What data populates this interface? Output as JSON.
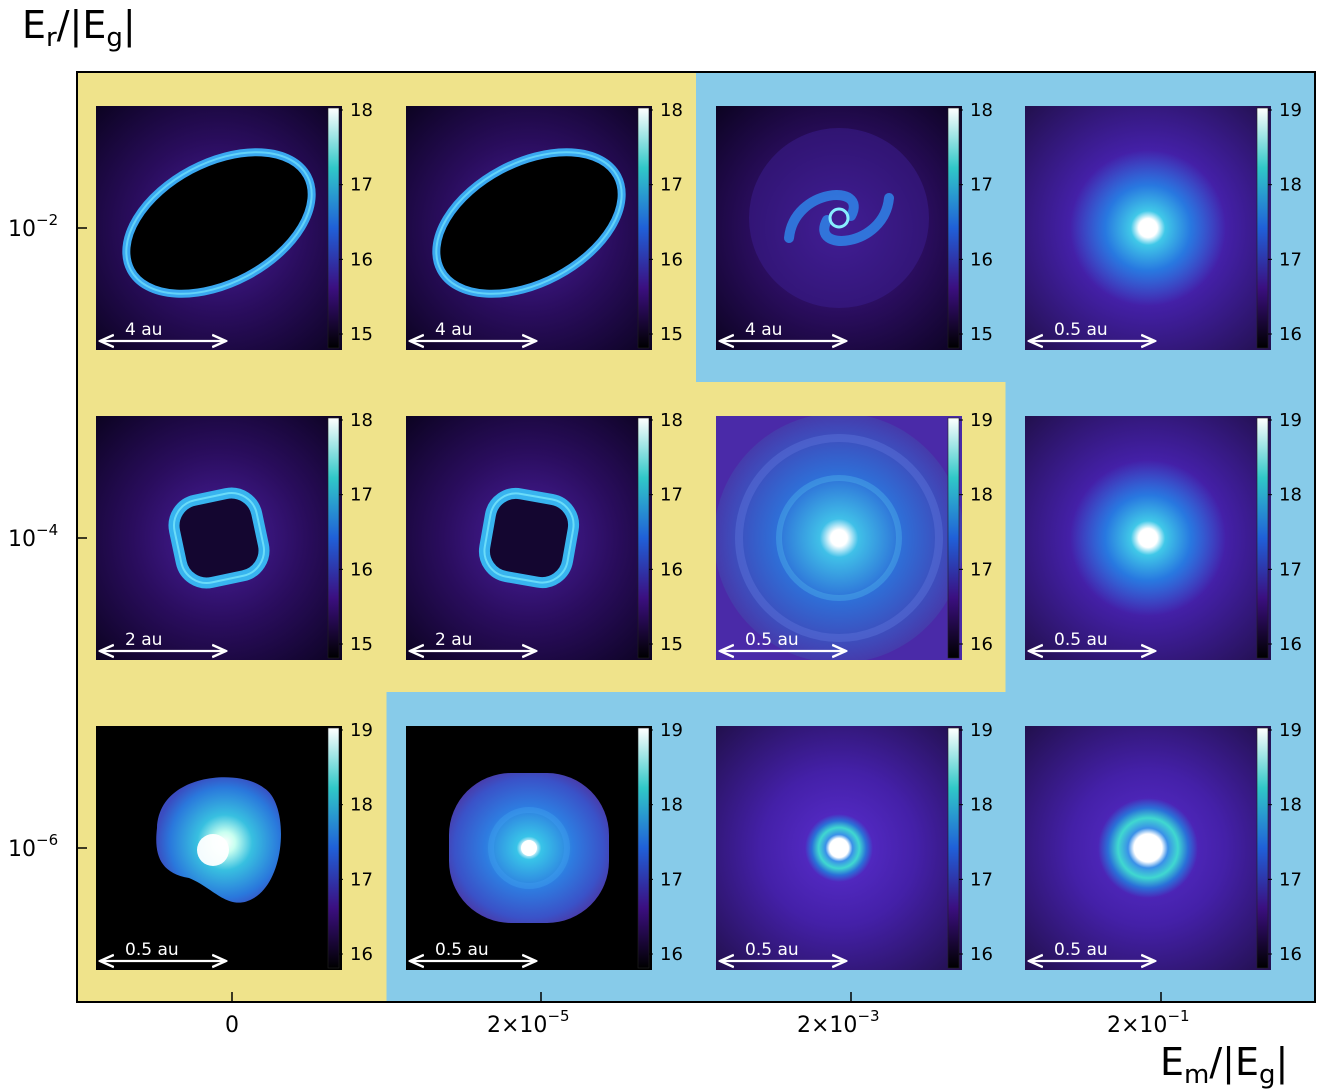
{
  "axes": {
    "y_title_main": "E",
    "y_title_sub": "r",
    "y_title_rest": "/|E",
    "y_title_sub2": "g",
    "y_title_end": "|",
    "x_title_main": "E",
    "x_title_sub": "m",
    "x_title_rest": "/|E",
    "x_title_sub2": "g",
    "x_title_end": "|",
    "y_ticks": [
      {
        "base": "10",
        "exp": "−2"
      },
      {
        "base": "10",
        "exp": "−4"
      },
      {
        "base": "10",
        "exp": "−6"
      }
    ],
    "x_ticks": [
      {
        "base": "0",
        "exp": ""
      },
      {
        "base": "2×10",
        "exp": "−5"
      },
      {
        "base": "2×10",
        "exp": "−3"
      },
      {
        "base": "2×10",
        "exp": "−1"
      }
    ]
  },
  "colors": {
    "region_yellow": "#efe38b",
    "region_blue": "#87cbe9",
    "frame": "#000000"
  },
  "region_map": [
    [
      "yellow",
      "yellow",
      "blue",
      "blue"
    ],
    [
      "yellow",
      "yellow",
      "yellow",
      "blue"
    ],
    [
      "yellow",
      "blue",
      "blue",
      "blue"
    ]
  ],
  "panels": [
    [
      {
        "morph": "ring",
        "scale": "4 au",
        "cbar": [
          "18",
          "17",
          "16",
          "15"
        ]
      },
      {
        "morph": "ring",
        "scale": "4 au",
        "cbar": [
          "18",
          "17",
          "16",
          "15"
        ]
      },
      {
        "morph": "spiral",
        "scale": "4 au",
        "cbar": [
          "18",
          "17",
          "16",
          "15"
        ]
      },
      {
        "morph": "core",
        "scale": "0.5 au",
        "cbar": [
          "19",
          "18",
          "17",
          "16"
        ]
      }
    ],
    [
      {
        "morph": "square-ring",
        "scale": "2 au",
        "cbar": [
          "18",
          "17",
          "16",
          "15"
        ]
      },
      {
        "morph": "square-ring",
        "scale": "2 au",
        "cbar": [
          "18",
          "17",
          "16",
          "15"
        ]
      },
      {
        "morph": "turbulent-disk",
        "scale": "0.5 au",
        "cbar": [
          "19",
          "18",
          "17",
          "16"
        ]
      },
      {
        "morph": "core",
        "scale": "0.5 au",
        "cbar": [
          "19",
          "18",
          "17",
          "16"
        ]
      }
    ],
    [
      {
        "morph": "blob",
        "scale": "0.5 au",
        "cbar": [
          "19",
          "18",
          "17",
          "16"
        ]
      },
      {
        "morph": "disk",
        "scale": "0.5 au",
        "cbar": [
          "19",
          "18",
          "17",
          "16"
        ]
      },
      {
        "morph": "ring-core",
        "scale": "0.5 au",
        "cbar": [
          "19",
          "18",
          "17",
          "16"
        ]
      },
      {
        "morph": "ring-core-wide",
        "scale": "0.5 au",
        "cbar": [
          "19",
          "18",
          "17",
          "16"
        ]
      }
    ]
  ]
}
